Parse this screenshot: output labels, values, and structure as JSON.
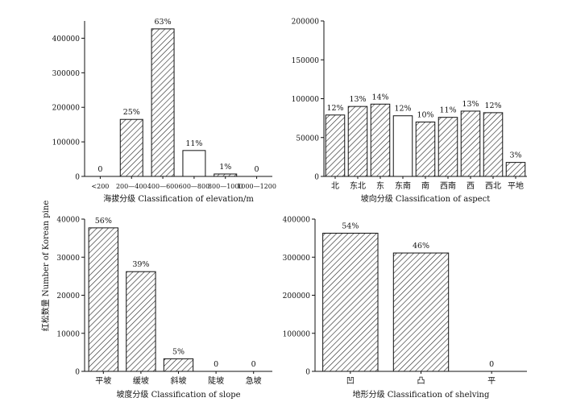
{
  "figure": {
    "ylabel": "红松数量 Number of Korean pine"
  },
  "chart_data": [
    {
      "type": "bar",
      "name": "elevation",
      "xlabel": "海拔分级 Classification of elevation/m",
      "categories": [
        "<200",
        "200—400",
        "400—600",
        "600—800",
        "800—1000",
        "1000—1200"
      ],
      "values": [
        0,
        165000,
        427000,
        75000,
        7000,
        0
      ],
      "labels": [
        "0",
        "25%",
        "63%",
        "11%",
        "1%",
        "0"
      ],
      "styles": [
        "hatch",
        "hatch",
        "hatch",
        "open",
        "hatch",
        "hatch"
      ],
      "ylim": [
        0,
        450000
      ],
      "yticks": [
        0,
        100000,
        200000,
        300000,
        400000
      ]
    },
    {
      "type": "bar",
      "name": "aspect",
      "xlabel": "坡向分级 Classification of aspect",
      "categories": [
        "北",
        "东北",
        "东",
        "东南",
        "南",
        "西南",
        "西",
        "西北",
        "平地"
      ],
      "values": [
        79000,
        90000,
        93000,
        78000,
        70000,
        76000,
        84000,
        82000,
        18000
      ],
      "labels": [
        "12%",
        "13%",
        "14%",
        "12%",
        "10%",
        "11%",
        "13%",
        "12%",
        "3%"
      ],
      "styles": [
        "hatch",
        "hatch",
        "hatch",
        "open",
        "hatch",
        "hatch",
        "hatch",
        "hatch",
        "hatch"
      ],
      "ylim": [
        0,
        200000
      ],
      "yticks": [
        0,
        50000,
        100000,
        150000,
        200000
      ]
    },
    {
      "type": "bar",
      "name": "slope",
      "xlabel": "坡度分级 Classification of slope",
      "categories": [
        "平坡",
        "缓坡",
        "斜坡",
        "陡坡",
        "急坡"
      ],
      "values": [
        37700,
        26200,
        3300,
        0,
        0
      ],
      "labels": [
        "56%",
        "39%",
        "5%",
        "0",
        "0"
      ],
      "styles": [
        "hatch",
        "hatch",
        "hatch",
        "hatch",
        "hatch"
      ],
      "ylim": [
        0,
        40000
      ],
      "yticks": [
        0,
        10000,
        20000,
        30000,
        40000
      ]
    },
    {
      "type": "bar",
      "name": "shelving",
      "xlabel": "地形分级 Classification of shelving",
      "categories": [
        "凹",
        "凸",
        "平"
      ],
      "values": [
        363000,
        311000,
        0
      ],
      "labels": [
        "54%",
        "46%",
        "0"
      ],
      "styles": [
        "hatch",
        "hatch",
        "hatch"
      ],
      "ylim": [
        0,
        400000
      ],
      "yticks": [
        0,
        100000,
        200000,
        300000,
        400000
      ]
    }
  ]
}
